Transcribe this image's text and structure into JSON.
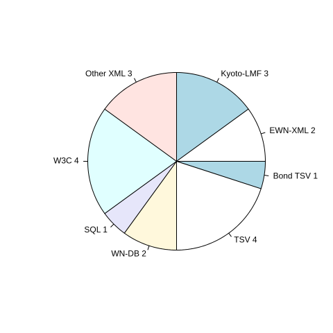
{
  "chart_data": {
    "type": "pie",
    "start_angle_deg": 90,
    "direction": "clockwise",
    "slices": [
      {
        "label": "Kyoto-LMF 3",
        "value": 3,
        "color": "#ADD8E6"
      },
      {
        "label": "EWN-XML 2",
        "value": 2,
        "color": "#FFFFFF"
      },
      {
        "label": "Bond TSV 1",
        "value": 1,
        "color": "#ADD8E6"
      },
      {
        "label": "TSV 4",
        "value": 4,
        "color": "#FFFFFF"
      },
      {
        "label": "WN-DB 2",
        "value": 2,
        "color": "#FFF8DC"
      },
      {
        "label": "SQL 1",
        "value": 1,
        "color": "#E6E6FA"
      },
      {
        "label": "W3C 4",
        "value": 4,
        "color": "#E0FFFF"
      },
      {
        "label": "Other XML 3",
        "value": 3,
        "color": "#FFE4E1"
      }
    ]
  }
}
